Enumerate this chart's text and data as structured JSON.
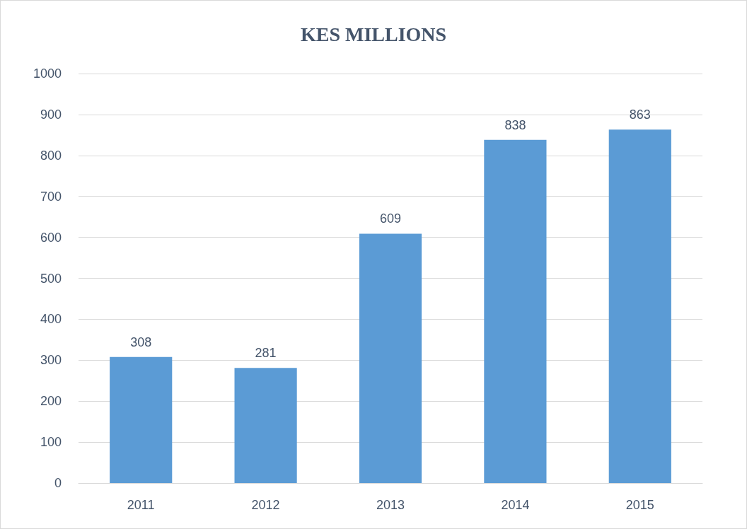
{
  "chart_data": {
    "type": "bar",
    "title": "KES MILLIONS",
    "categories": [
      "2011",
      "2012",
      "2013",
      "2014",
      "2015"
    ],
    "values": [
      308,
      281,
      609,
      838,
      863
    ],
    "color": "#5b9bd5",
    "ylim": [
      0,
      1000
    ],
    "yticks": [
      0,
      100,
      200,
      300,
      400,
      500,
      600,
      700,
      800,
      900,
      1000
    ],
    "grid": "y",
    "data_labels": true
  }
}
